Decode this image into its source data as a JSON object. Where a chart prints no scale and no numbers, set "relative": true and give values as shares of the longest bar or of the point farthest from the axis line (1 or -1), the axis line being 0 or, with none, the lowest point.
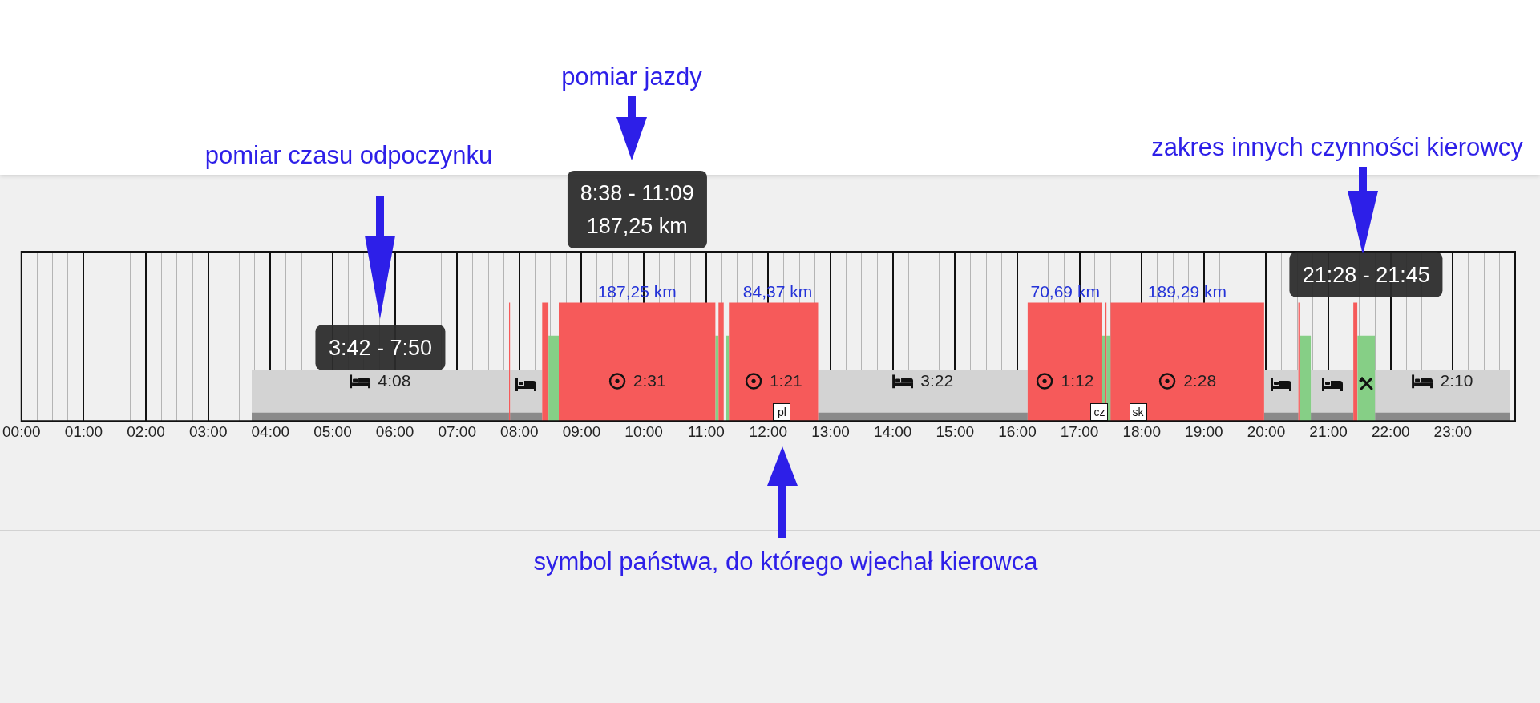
{
  "chart_data": {
    "type": "area",
    "relative": true,
    "grid": "x",
    "series": [
      {
        "color": "#d3d3d3",
        "x": [
          3.7,
          3.7,
          7.8333,
          7.8333,
          7.85,
          7.85,
          8.3667,
          8.3667,
          12.8,
          12.8,
          16.1667,
          16.1667,
          19.9667,
          19.9667,
          20.5167,
          20.5167,
          20.7167,
          20.7167,
          21.4,
          21.4,
          21.75,
          21.75,
          23.9167,
          23.9167
        ],
        "values": [
          0,
          0.43,
          0.43,
          0,
          0,
          0.43,
          0.43,
          0,
          0,
          0.43,
          0.43,
          0,
          0,
          0.43,
          0.43,
          0,
          0,
          0.43,
          0.43,
          0,
          0,
          0.43,
          0.43,
          0
        ]
      },
      {
        "color": "#8a8a8a",
        "x": [
          3.7,
          3.7,
          7.8333,
          7.8333,
          7.85,
          7.85,
          8.3667,
          8.3667,
          12.8,
          12.8,
          16.1667,
          16.1667,
          19.9667,
          19.9667,
          20.5167,
          20.5167,
          20.7167,
          20.7167,
          21.4,
          21.4,
          21.75,
          21.75,
          23.9167,
          23.9167
        ],
        "values": [
          0,
          0.07,
          0.07,
          0,
          0,
          0.07,
          0.07,
          0,
          0,
          0.07,
          0.07,
          0,
          0,
          0.07,
          0.07,
          0,
          0,
          0.07,
          0.07,
          0,
          0,
          0.07,
          0.07,
          0
        ]
      },
      {
        "color": "#86cf86",
        "x": [
          8.4667,
          8.4667,
          8.6333,
          8.6333,
          11.15,
          11.15,
          11.2,
          11.2,
          11.3167,
          11.3167,
          11.3667,
          11.3667,
          17.3667,
          17.3667,
          17.4167,
          17.4167,
          17.4333,
          17.4333,
          17.5,
          17.5,
          20.5333,
          20.5333,
          20.7167,
          20.7167,
          21.4667,
          21.4667,
          21.75,
          21.75
        ],
        "values": [
          0,
          0.72,
          0.72,
          0,
          0,
          0.72,
          0.72,
          0,
          0,
          0.72,
          0.72,
          0,
          0,
          0.72,
          0.72,
          0,
          0,
          0.72,
          0.72,
          0,
          0,
          0.72,
          0.72,
          0,
          0,
          0.72,
          0.72,
          0
        ]
      },
      {
        "color": "#f65a5a",
        "x": [
          7.8333,
          7.8333,
          7.85,
          7.85,
          8.3667,
          8.3667,
          8.4667,
          8.4667,
          8.6333,
          8.6333,
          11.15,
          11.15,
          11.2,
          11.2,
          11.2833,
          11.2833,
          11.3667,
          11.3667,
          12.8,
          12.8,
          16.1667,
          16.1667,
          17.3667,
          17.3667,
          17.4167,
          17.4167,
          17.4333,
          17.4333,
          17.5,
          17.5,
          19.9667,
          19.9667,
          20.5167,
          20.5167,
          20.5333,
          20.5333,
          21.4,
          21.4,
          21.4667,
          21.4667
        ],
        "values": [
          0,
          1,
          1,
          0,
          0,
          1,
          1,
          0,
          0,
          1,
          1,
          0,
          0,
          1,
          1,
          0,
          0,
          1,
          1,
          0,
          0,
          1,
          1,
          0,
          0,
          1,
          1,
          0,
          0,
          1,
          1,
          0,
          0,
          1,
          1,
          0,
          0,
          1,
          1,
          0
        ]
      }
    ],
    "xlim": [
      0,
      24
    ],
    "xticks": [
      {
        "value": 0,
        "label": "00:00"
      },
      {
        "value": 0.25,
        "label": null
      },
      {
        "value": 0.5,
        "label": null
      },
      {
        "value": 0.75,
        "label": null
      },
      {
        "value": 1,
        "label": "01:00"
      },
      {
        "value": 1.25,
        "label": null
      },
      {
        "value": 1.5,
        "label": null
      },
      {
        "value": 1.75,
        "label": null
      },
      {
        "value": 2,
        "label": "02:00"
      },
      {
        "value": 2.25,
        "label": null
      },
      {
        "value": 2.5,
        "label": null
      },
      {
        "value": 2.75,
        "label": null
      },
      {
        "value": 3,
        "label": "03:00"
      },
      {
        "value": 3.25,
        "label": null
      },
      {
        "value": 3.5,
        "label": null
      },
      {
        "value": 3.75,
        "label": null
      },
      {
        "value": 4,
        "label": "04:00"
      },
      {
        "value": 4.25,
        "label": null
      },
      {
        "value": 4.5,
        "label": null
      },
      {
        "value": 4.75,
        "label": null
      },
      {
        "value": 5,
        "label": "05:00"
      },
      {
        "value": 5.25,
        "label": null
      },
      {
        "value": 5.5,
        "label": null
      },
      {
        "value": 5.75,
        "label": null
      },
      {
        "value": 6,
        "label": "06:00"
      },
      {
        "value": 6.25,
        "label": null
      },
      {
        "value": 6.5,
        "label": null
      },
      {
        "value": 6.75,
        "label": null
      },
      {
        "value": 7,
        "label": "07:00"
      },
      {
        "value": 7.25,
        "label": null
      },
      {
        "value": 7.5,
        "label": null
      },
      {
        "value": 7.75,
        "label": null
      },
      {
        "value": 8,
        "label": "08:00"
      },
      {
        "value": 8.25,
        "label": null
      },
      {
        "value": 8.5,
        "label": null
      },
      {
        "value": 8.75,
        "label": null
      },
      {
        "value": 9,
        "label": "09:00"
      },
      {
        "value": 9.25,
        "label": null
      },
      {
        "value": 9.5,
        "label": null
      },
      {
        "value": 9.75,
        "label": null
      },
      {
        "value": 10,
        "label": "10:00"
      },
      {
        "value": 10.25,
        "label": null
      },
      {
        "value": 10.5,
        "label": null
      },
      {
        "value": 10.75,
        "label": null
      },
      {
        "value": 11,
        "label": "11:00"
      },
      {
        "value": 11.25,
        "label": null
      },
      {
        "value": 11.5,
        "label": null
      },
      {
        "value": 11.75,
        "label": null
      },
      {
        "value": 12,
        "label": "12:00"
      },
      {
        "value": 12.25,
        "label": null
      },
      {
        "value": 12.5,
        "label": null
      },
      {
        "value": 12.75,
        "label": null
      },
      {
        "value": 13,
        "label": "13:00"
      },
      {
        "value": 13.25,
        "label": null
      },
      {
        "value": 13.5,
        "label": null
      },
      {
        "value": 13.75,
        "label": null
      },
      {
        "value": 14,
        "label": "14:00"
      },
      {
        "value": 14.25,
        "label": null
      },
      {
        "value": 14.5,
        "label": null
      },
      {
        "value": 14.75,
        "label": null
      },
      {
        "value": 15,
        "label": "15:00"
      },
      {
        "value": 15.25,
        "label": null
      },
      {
        "value": 15.5,
        "label": null
      },
      {
        "value": 15.75,
        "label": null
      },
      {
        "value": 16,
        "label": "16:00"
      },
      {
        "value": 16.25,
        "label": null
      },
      {
        "value": 16.5,
        "label": null
      },
      {
        "value": 16.75,
        "label": null
      },
      {
        "value": 17,
        "label": "17:00"
      },
      {
        "value": 17.25,
        "label": null
      },
      {
        "value": 17.5,
        "label": null
      },
      {
        "value": 17.75,
        "label": null
      },
      {
        "value": 18,
        "label": "18:00"
      },
      {
        "value": 18.25,
        "label": null
      },
      {
        "value": 18.5,
        "label": null
      },
      {
        "value": 18.75,
        "label": null
      },
      {
        "value": 19,
        "label": "19:00"
      },
      {
        "value": 19.25,
        "label": null
      },
      {
        "value": 19.5,
        "label": null
      },
      {
        "value": 19.75,
        "label": null
      },
      {
        "value": 20,
        "label": "20:00"
      },
      {
        "value": 20.25,
        "label": null
      },
      {
        "value": 20.5,
        "label": null
      },
      {
        "value": 20.75,
        "label": null
      },
      {
        "value": 21,
        "label": "21:00"
      },
      {
        "value": 21.25,
        "label": null
      },
      {
        "value": 21.5,
        "label": null
      },
      {
        "value": 21.75,
        "label": null
      },
      {
        "value": 22,
        "label": "22:00"
      },
      {
        "value": 22.25,
        "label": null
      },
      {
        "value": 22.5,
        "label": null
      },
      {
        "value": 22.75,
        "label": null
      },
      {
        "value": 23,
        "label": "23:00"
      },
      {
        "value": 23.25,
        "label": null
      },
      {
        "value": 23.5,
        "label": null
      },
      {
        "value": 23.75,
        "label": null
      }
    ],
    "annotations": [
      "pomiar czasu odpoczynku",
      "pomiar jazdy",
      "zakres innych czynności kierowcy",
      "symbol państwa, do którego wjechał kierowca",
      {
        "text": "3:42 - 7:50",
        "x": 5.7667,
        "y": 0.43
      },
      "8:38 - 11:09\n187,25 km",
      {
        "text": "21:28 - 21:45",
        "x": 21.6083,
        "y": 0.72
      },
      {
        "text": "84,37 km",
        "x": 12.15,
        "y": 1
      },
      {
        "text": "70,69 km",
        "x": 16.77,
        "y": 1
      },
      {
        "text": "189,29 km",
        "x": 18.73,
        "y": 1
      },
      "4:08",
      "2:31",
      "1:21",
      "3:22",
      "1:12",
      "2:28",
      "2:10",
      {
        "text": "pl",
        "x": 12.22,
        "y": 0
      },
      {
        "text": "cz",
        "x": 17.32,
        "y": 0
      },
      {
        "text": "sk",
        "x": 17.94,
        "y": 0
      },
      {
        "text": "187,25 km",
        "x": 9.8917,
        "y": 1
      }
    ]
  }
}
